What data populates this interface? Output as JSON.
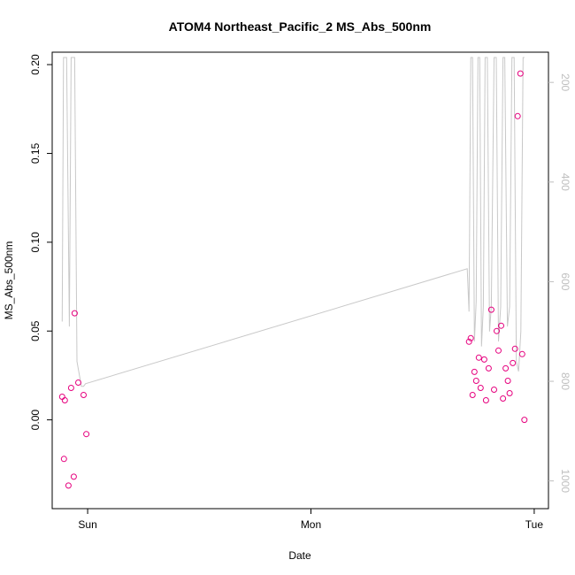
{
  "chart_data": {
    "type": "scatter",
    "title": "ATOM4 Northeast_Pacific_2 MS_Abs_500nm",
    "xlabel": "Date",
    "ylabel": "MS_Abs_500nm",
    "x_ticks": [
      {
        "label": "Sun",
        "value": 0.0
      },
      {
        "label": "Mon",
        "value": 1.0
      },
      {
        "label": "Tue",
        "value": 2.0
      }
    ],
    "xlim": [
      -0.135,
      2.04
    ],
    "ylim": [
      -0.047,
      0.204
    ],
    "y_ticks": [
      {
        "label": "0.00",
        "value": 0.0
      },
      {
        "label": "0.05",
        "value": 0.05
      },
      {
        "label": "0.10",
        "value": 0.1
      },
      {
        "label": "0.15",
        "value": 0.15
      },
      {
        "label": "0.20",
        "value": 0.2
      }
    ],
    "right_axis": {
      "ticks": [
        {
          "label": "200",
          "value": 200
        },
        {
          "label": "400",
          "value": 400
        },
        {
          "label": "600",
          "value": 600
        },
        {
          "label": "800",
          "value": 800
        },
        {
          "label": "1000",
          "value": 1000
        }
      ],
      "range_bottom_to_top": [
        1045,
        150
      ],
      "color": "#bebebe"
    },
    "series": [
      {
        "kind": "points",
        "color": "#e6007e",
        "x": [
          -0.114,
          -0.106,
          -0.102,
          -0.086,
          -0.074,
          -0.062,
          -0.058,
          -0.042,
          -0.018,
          -0.006,
          1.708,
          1.716,
          1.724,
          1.732,
          1.74,
          1.752,
          1.76,
          1.776,
          1.784,
          1.796,
          1.808,
          1.82,
          1.832,
          1.84,
          1.852,
          1.86,
          1.872,
          1.882,
          1.89,
          1.904,
          1.914,
          1.926,
          1.938,
          1.946,
          1.956
        ],
        "y": [
          0.013,
          -0.022,
          0.011,
          -0.037,
          0.018,
          -0.032,
          0.06,
          0.021,
          0.014,
          -0.008,
          0.044,
          0.046,
          0.014,
          0.027,
          0.022,
          0.035,
          0.018,
          0.034,
          0.011,
          0.029,
          0.062,
          0.017,
          0.05,
          0.039,
          0.053,
          0.012,
          0.029,
          0.022,
          0.015,
          0.032,
          0.04,
          0.171,
          0.195,
          0.037,
          0.0
        ]
      },
      {
        "kind": "line",
        "color": "#c8c8c8",
        "axis": "right",
        "x": [
          -0.114,
          -0.108,
          -0.1,
          -0.094,
          -0.082,
          -0.074,
          -0.066,
          -0.058,
          -0.048,
          -0.04,
          -0.028,
          -0.018,
          -0.01,
          1.7,
          1.708,
          1.716,
          1.724,
          1.732,
          1.74,
          1.748,
          1.756,
          1.764,
          1.772,
          1.78,
          1.79,
          1.8,
          1.808,
          1.82,
          1.83,
          1.84,
          1.85,
          1.86,
          1.868,
          1.88,
          1.89,
          1.9,
          1.91,
          1.92,
          1.93,
          1.94,
          1.95,
          1.956
        ],
        "y": [
          680,
          150,
          150,
          150,
          690,
          150,
          150,
          150,
          760,
          780,
          810,
          810,
          805,
          574,
          660,
          150,
          150,
          720,
          640,
          150,
          150,
          730,
          650,
          150,
          150,
          700,
          650,
          150,
          150,
          720,
          650,
          150,
          150,
          690,
          650,
          150,
          150,
          760,
          780,
          700,
          150,
          150
        ]
      }
    ],
    "grid": false,
    "legend": "none"
  }
}
